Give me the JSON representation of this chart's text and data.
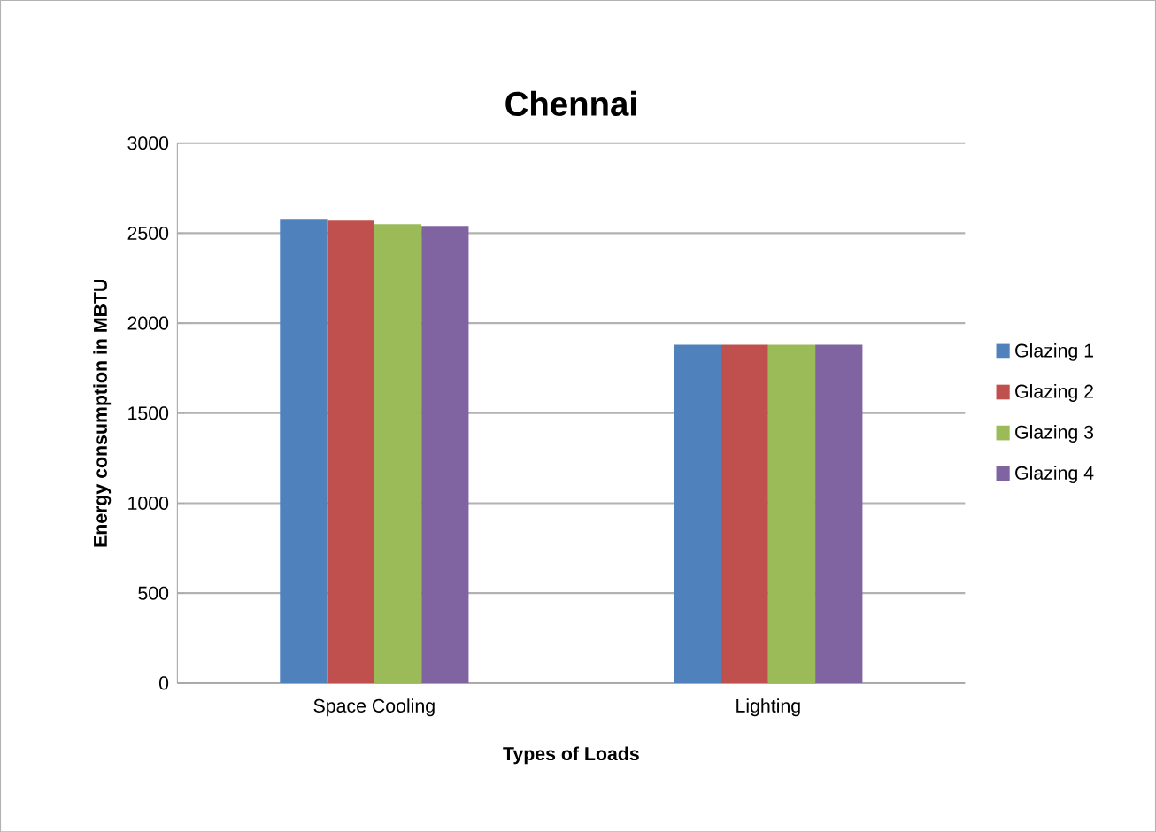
{
  "chart_data": {
    "type": "bar",
    "title": "Chennai",
    "xlabel": "Types of Loads",
    "ylabel": "Energy consumption in MBTU",
    "categories": [
      "Space Cooling",
      "Lighting"
    ],
    "series": [
      {
        "name": "Glazing 1",
        "color": "#4f81bd",
        "values": [
          2580,
          1880
        ]
      },
      {
        "name": "Glazing 2",
        "color": "#c0504d",
        "values": [
          2570,
          1880
        ]
      },
      {
        "name": "Glazing 3",
        "color": "#9bbb59",
        "values": [
          2550,
          1880
        ]
      },
      {
        "name": "Glazing 4",
        "color": "#8064a2",
        "values": [
          2540,
          1880
        ]
      }
    ],
    "ylim": [
      0,
      3000
    ],
    "yticks": [
      0,
      500,
      1000,
      1500,
      2000,
      2500,
      3000
    ],
    "grid": "y",
    "legend": "right"
  }
}
